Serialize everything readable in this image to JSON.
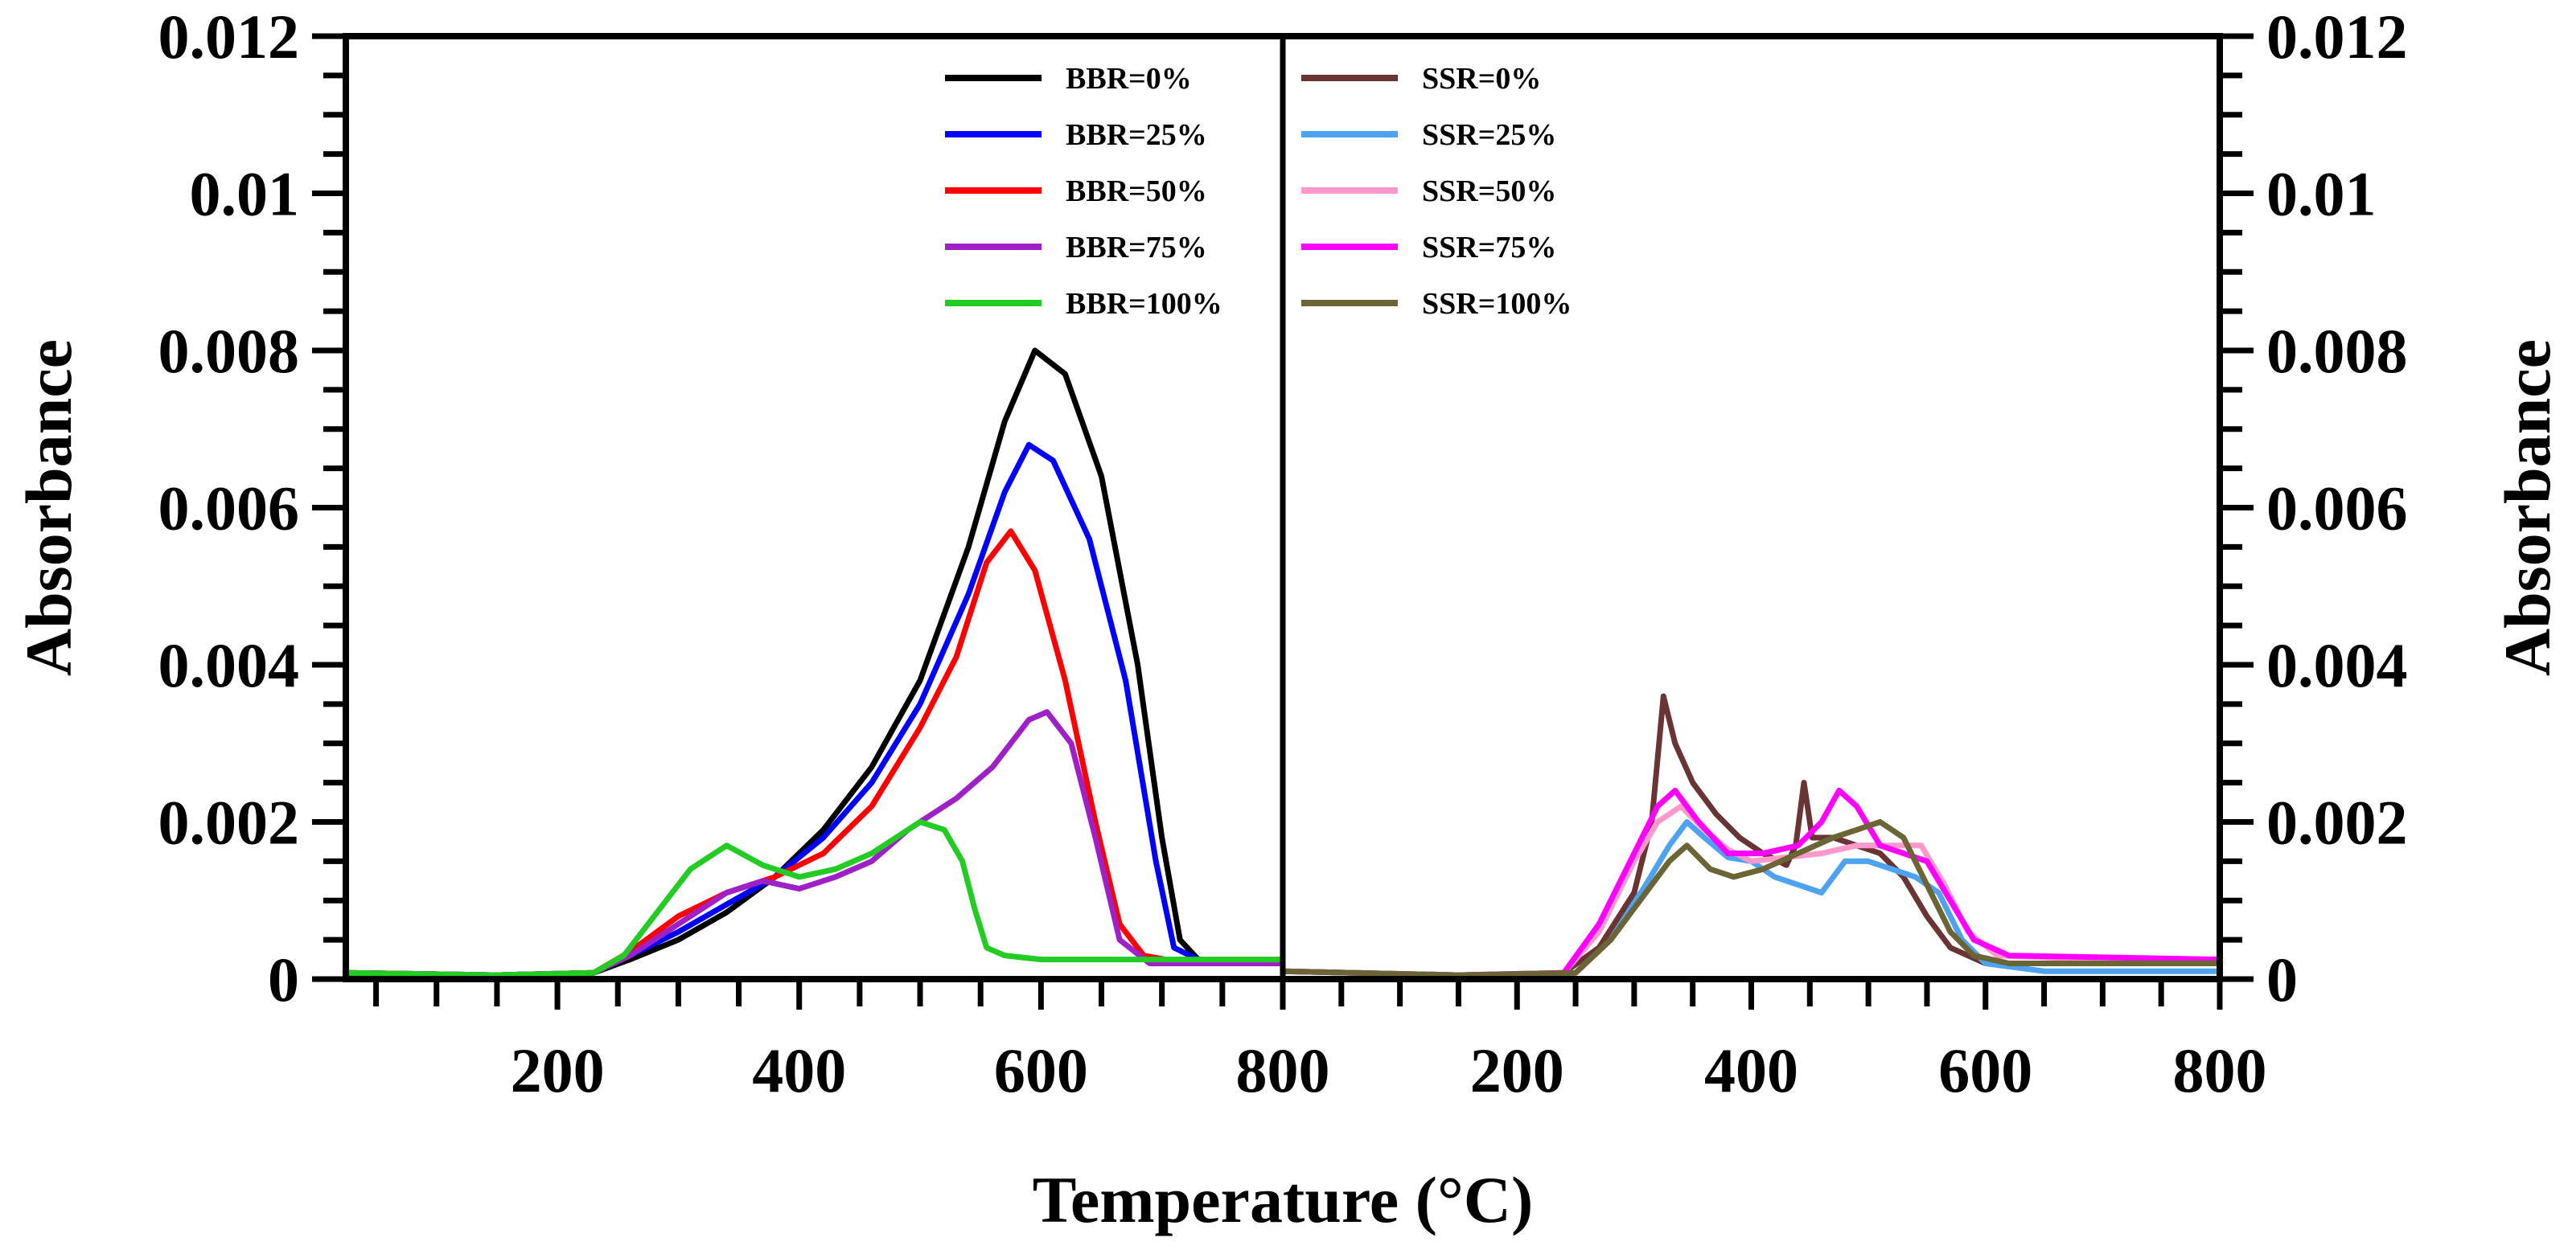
{
  "chart_data": [
    {
      "type": "line",
      "panel": "left",
      "xlim": [
        25,
        800
      ],
      "ylim": [
        0,
        0.012
      ],
      "x_ticks": [
        200,
        400,
        600,
        800
      ],
      "x_tick_labels": [
        "200",
        "400",
        "600",
        "800"
      ],
      "y_ticks": [
        0,
        0.002,
        0.004,
        0.006,
        0.008,
        0.01,
        0.012
      ],
      "y_tick_labels": [
        "0",
        "0.002",
        "0.004",
        "0.006",
        "0.008",
        "0.01",
        "0.012"
      ],
      "ylabel": "Absorbance",
      "legend_position": "top-center",
      "series": [
        {
          "name": "BBR=0%",
          "color": "#000000",
          "points": [
            [
              25,
              8e-05
            ],
            [
              150,
              5e-05
            ],
            [
              230,
              8e-05
            ],
            [
              260,
              0.00025
            ],
            [
              300,
              0.0005
            ],
            [
              340,
              0.00085
            ],
            [
              380,
              0.0013
            ],
            [
              420,
              0.0019
            ],
            [
              460,
              0.0027
            ],
            [
              500,
              0.0038
            ],
            [
              540,
              0.0055
            ],
            [
              570,
              0.0071
            ],
            [
              595,
              0.008
            ],
            [
              620,
              0.0077
            ],
            [
              650,
              0.0064
            ],
            [
              680,
              0.004
            ],
            [
              700,
              0.0018
            ],
            [
              715,
              0.0005
            ],
            [
              730,
              0.00025
            ],
            [
              800,
              0.0002
            ]
          ]
        },
        {
          "name": "BBR=25%",
          "color": "#0000ff",
          "points": [
            [
              25,
              8e-05
            ],
            [
              150,
              5e-05
            ],
            [
              230,
              8e-05
            ],
            [
              260,
              0.0003
            ],
            [
              300,
              0.0006
            ],
            [
              340,
              0.00095
            ],
            [
              380,
              0.0013
            ],
            [
              420,
              0.0018
            ],
            [
              460,
              0.0025
            ],
            [
              500,
              0.0035
            ],
            [
              540,
              0.0049
            ],
            [
              570,
              0.0062
            ],
            [
              590,
              0.0068
            ],
            [
              610,
              0.0066
            ],
            [
              640,
              0.0056
            ],
            [
              670,
              0.0038
            ],
            [
              695,
              0.0015
            ],
            [
              710,
              0.0004
            ],
            [
              730,
              0.00025
            ],
            [
              800,
              0.0002
            ]
          ]
        },
        {
          "name": "BBR=50%",
          "color": "#ff0000",
          "points": [
            [
              25,
              8e-05
            ],
            [
              150,
              5e-05
            ],
            [
              230,
              8e-05
            ],
            [
              260,
              0.00035
            ],
            [
              300,
              0.0008
            ],
            [
              340,
              0.0011
            ],
            [
              380,
              0.0013
            ],
            [
              420,
              0.0016
            ],
            [
              460,
              0.0022
            ],
            [
              500,
              0.0032
            ],
            [
              530,
              0.0041
            ],
            [
              555,
              0.0053
            ],
            [
              575,
              0.0057
            ],
            [
              595,
              0.0052
            ],
            [
              620,
              0.0038
            ],
            [
              645,
              0.002
            ],
            [
              665,
              0.0007
            ],
            [
              685,
              0.0003
            ],
            [
              720,
              0.0002
            ],
            [
              800,
              0.0002
            ]
          ]
        },
        {
          "name": "BBR=75%",
          "color": "#a020c8",
          "points": [
            [
              25,
              8e-05
            ],
            [
              150,
              5e-05
            ],
            [
              230,
              8e-05
            ],
            [
              260,
              0.0003
            ],
            [
              300,
              0.0007
            ],
            [
              340,
              0.0011
            ],
            [
              370,
              0.00125
            ],
            [
              400,
              0.00115
            ],
            [
              430,
              0.0013
            ],
            [
              460,
              0.0015
            ],
            [
              490,
              0.0019
            ],
            [
              530,
              0.0023
            ],
            [
              560,
              0.0027
            ],
            [
              590,
              0.0033
            ],
            [
              605,
              0.0034
            ],
            [
              625,
              0.003
            ],
            [
              645,
              0.0018
            ],
            [
              665,
              0.0005
            ],
            [
              690,
              0.0002
            ],
            [
              800,
              0.0002
            ]
          ]
        },
        {
          "name": "BBR=100%",
          "color": "#22cc22",
          "points": [
            [
              25,
              8e-05
            ],
            [
              150,
              5e-05
            ],
            [
              230,
              8e-05
            ],
            [
              255,
              0.0003
            ],
            [
              280,
              0.0008
            ],
            [
              310,
              0.0014
            ],
            [
              340,
              0.0017
            ],
            [
              370,
              0.00145
            ],
            [
              400,
              0.0013
            ],
            [
              430,
              0.0014
            ],
            [
              460,
              0.0016
            ],
            [
              480,
              0.0018
            ],
            [
              500,
              0.002
            ],
            [
              520,
              0.0019
            ],
            [
              535,
              0.0015
            ],
            [
              545,
              0.0009
            ],
            [
              555,
              0.0004
            ],
            [
              570,
              0.0003
            ],
            [
              600,
              0.00025
            ],
            [
              800,
              0.00025
            ]
          ]
        }
      ]
    },
    {
      "type": "line",
      "panel": "right",
      "xlim": [
        0,
        800
      ],
      "ylim": [
        0,
        0.012
      ],
      "x_ticks": [
        200,
        400,
        600,
        800
      ],
      "x_tick_labels": [
        "200",
        "400",
        "600",
        "800"
      ],
      "y_ticks": [
        0,
        0.002,
        0.004,
        0.006,
        0.008,
        0.01,
        0.012
      ],
      "y_tick_labels": [
        "0",
        "0.002",
        "0.004",
        "0.006",
        "0.008",
        "0.01",
        "0.012"
      ],
      "ylabel": "Absorbance",
      "legend_position": "top-left",
      "series": [
        {
          "name": "SSR=0%",
          "color": "#6b3434",
          "points": [
            [
              0,
              0.0001
            ],
            [
              150,
              5e-05
            ],
            [
              240,
              8e-05
            ],
            [
              270,
              0.0004
            ],
            [
              300,
              0.0011
            ],
            [
              315,
              0.002
            ],
            [
              325,
              0.0036
            ],
            [
              335,
              0.003
            ],
            [
              350,
              0.0025
            ],
            [
              370,
              0.0021
            ],
            [
              390,
              0.0018
            ],
            [
              410,
              0.0016
            ],
            [
              430,
              0.00145
            ],
            [
              438,
              0.0017
            ],
            [
              445,
              0.0025
            ],
            [
              452,
              0.0018
            ],
            [
              470,
              0.0018
            ],
            [
              490,
              0.0017
            ],
            [
              510,
              0.0016
            ],
            [
              530,
              0.0013
            ],
            [
              550,
              0.0008
            ],
            [
              570,
              0.0004
            ],
            [
              600,
              0.0002
            ],
            [
              700,
              0.0002
            ],
            [
              800,
              0.0002
            ]
          ]
        },
        {
          "name": "SSR=25%",
          "color": "#4da3f0",
          "points": [
            [
              0,
              0.0001
            ],
            [
              150,
              5e-05
            ],
            [
              250,
              8e-05
            ],
            [
              280,
              0.0005
            ],
            [
              310,
              0.0012
            ],
            [
              330,
              0.0017
            ],
            [
              345,
              0.002
            ],
            [
              360,
              0.0018
            ],
            [
              380,
              0.00155
            ],
            [
              400,
              0.0015
            ],
            [
              420,
              0.0013
            ],
            [
              440,
              0.0012
            ],
            [
              460,
              0.0011
            ],
            [
              480,
              0.0015
            ],
            [
              500,
              0.0015
            ],
            [
              520,
              0.0014
            ],
            [
              540,
              0.0013
            ],
            [
              560,
              0.0011
            ],
            [
              580,
              0.0005
            ],
            [
              600,
              0.0002
            ],
            [
              650,
              0.0001
            ],
            [
              800,
              0.0001
            ]
          ]
        },
        {
          "name": "SSR=50%",
          "color": "#ff99cc",
          "points": [
            [
              0,
              0.0001
            ],
            [
              150,
              5e-05
            ],
            [
              240,
              8e-05
            ],
            [
              270,
              0.0006
            ],
            [
              300,
              0.0015
            ],
            [
              320,
              0.002
            ],
            [
              340,
              0.0022
            ],
            [
              360,
              0.0019
            ],
            [
              380,
              0.00165
            ],
            [
              400,
              0.0015
            ],
            [
              430,
              0.00155
            ],
            [
              460,
              0.0016
            ],
            [
              490,
              0.0017
            ],
            [
              520,
              0.0017
            ],
            [
              545,
              0.0017
            ],
            [
              565,
              0.0012
            ],
            [
              585,
              0.0006
            ],
            [
              610,
              0.0003
            ],
            [
              700,
              0.00025
            ],
            [
              800,
              0.00025
            ]
          ]
        },
        {
          "name": "SSR=75%",
          "color": "#ff00ff",
          "points": [
            [
              0,
              0.0001
            ],
            [
              150,
              5e-05
            ],
            [
              240,
              8e-05
            ],
            [
              270,
              0.0007
            ],
            [
              300,
              0.0016
            ],
            [
              320,
              0.0022
            ],
            [
              335,
              0.0024
            ],
            [
              355,
              0.002
            ],
            [
              380,
              0.0016
            ],
            [
              410,
              0.0016
            ],
            [
              440,
              0.0017
            ],
            [
              460,
              0.002
            ],
            [
              475,
              0.0024
            ],
            [
              490,
              0.0022
            ],
            [
              510,
              0.0017
            ],
            [
              530,
              0.0016
            ],
            [
              550,
              0.0015
            ],
            [
              570,
              0.001
            ],
            [
              590,
              0.0005
            ],
            [
              620,
              0.0003
            ],
            [
              800,
              0.00025
            ]
          ]
        },
        {
          "name": "SSR=100%",
          "color": "#6b6434",
          "points": [
            [
              0,
              0.0001
            ],
            [
              150,
              5e-05
            ],
            [
              250,
              8e-05
            ],
            [
              280,
              0.0005
            ],
            [
              310,
              0.0011
            ],
            [
              330,
              0.0015
            ],
            [
              345,
              0.0017
            ],
            [
              365,
              0.0014
            ],
            [
              385,
              0.0013
            ],
            [
              410,
              0.0014
            ],
            [
              440,
              0.0016
            ],
            [
              470,
              0.0018
            ],
            [
              490,
              0.0019
            ],
            [
              510,
              0.002
            ],
            [
              530,
              0.0018
            ],
            [
              550,
              0.0012
            ],
            [
              570,
              0.0006
            ],
            [
              590,
              0.0003
            ],
            [
              620,
              0.0002
            ],
            [
              800,
              0.0002
            ]
          ]
        }
      ]
    }
  ],
  "xlabel": "Temperature (°C)"
}
